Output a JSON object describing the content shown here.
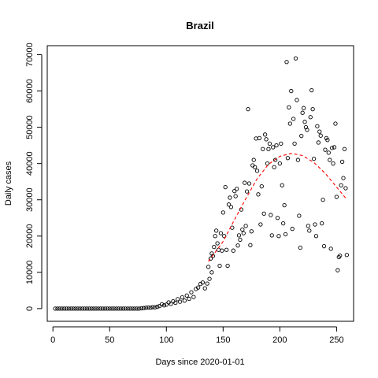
{
  "chart_data": {
    "type": "scatter",
    "title": "Brazil",
    "xlabel": "Days since 2020-01-01",
    "ylabel": "Daily cases",
    "xlim": [
      -5,
      265
    ],
    "ylim": [
      -3500,
      72500
    ],
    "x_ticks": [
      0,
      50,
      100,
      150,
      200,
      250
    ],
    "y_ticks": [
      0,
      10000,
      20000,
      30000,
      40000,
      50000,
      60000,
      70000
    ],
    "x_tick_labels": [
      "0",
      "50",
      "100",
      "150",
      "200",
      "250"
    ],
    "y_tick_labels": [
      "0",
      "10000",
      "20000",
      "30000",
      "40000",
      "50000",
      "60000",
      "70000"
    ],
    "points": [
      [
        2,
        0
      ],
      [
        4,
        0
      ],
      [
        6,
        0
      ],
      [
        8,
        0
      ],
      [
        10,
        0
      ],
      [
        12,
        0
      ],
      [
        14,
        0
      ],
      [
        16,
        0
      ],
      [
        18,
        0
      ],
      [
        20,
        0
      ],
      [
        22,
        0
      ],
      [
        24,
        0
      ],
      [
        26,
        0
      ],
      [
        28,
        0
      ],
      [
        30,
        0
      ],
      [
        32,
        0
      ],
      [
        34,
        0
      ],
      [
        36,
        0
      ],
      [
        38,
        0
      ],
      [
        40,
        0
      ],
      [
        42,
        0
      ],
      [
        44,
        0
      ],
      [
        46,
        0
      ],
      [
        48,
        0
      ],
      [
        50,
        0
      ],
      [
        52,
        0
      ],
      [
        54,
        0
      ],
      [
        56,
        0
      ],
      [
        58,
        0
      ],
      [
        60,
        0
      ],
      [
        62,
        0
      ],
      [
        64,
        0
      ],
      [
        66,
        0
      ],
      [
        68,
        0
      ],
      [
        70,
        0
      ],
      [
        72,
        0
      ],
      [
        74,
        0
      ],
      [
        76,
        0
      ],
      [
        78,
        100
      ],
      [
        80,
        150
      ],
      [
        82,
        250
      ],
      [
        84,
        300
      ],
      [
        86,
        250
      ],
      [
        88,
        400
      ],
      [
        90,
        350
      ],
      [
        92,
        500
      ],
      [
        94,
        700
      ],
      [
        96,
        1200
      ],
      [
        98,
        900
      ],
      [
        100,
        1100
      ],
      [
        102,
        1700
      ],
      [
        104,
        1300
      ],
      [
        106,
        2000
      ],
      [
        108,
        1600
      ],
      [
        110,
        2600
      ],
      [
        112,
        1900
      ],
      [
        114,
        3100
      ],
      [
        116,
        2200
      ],
      [
        118,
        3600
      ],
      [
        120,
        2700
      ],
      [
        122,
        4500
      ],
      [
        124,
        3200
      ],
      [
        126,
        5400
      ],
      [
        128,
        5800
      ],
      [
        130,
        6800
      ],
      [
        132,
        7200
      ],
      [
        134,
        5600
      ],
      [
        136,
        6900
      ],
      [
        137,
        11500
      ],
      [
        138,
        8200
      ],
      [
        139,
        13800
      ],
      [
        140,
        15200
      ],
      [
        140,
        10000
      ],
      [
        141,
        14500
      ],
      [
        142,
        17000
      ],
      [
        143,
        20000
      ],
      [
        144,
        21500
      ],
      [
        145,
        18000
      ],
      [
        146,
        16200
      ],
      [
        147,
        11800
      ],
      [
        148,
        20800
      ],
      [
        149,
        16000
      ],
      [
        150,
        26500
      ],
      [
        151,
        20000
      ],
      [
        152,
        33500
      ],
      [
        153,
        16200
      ],
      [
        154,
        11800
      ],
      [
        155,
        28700
      ],
      [
        156,
        30600
      ],
      [
        157,
        28000
      ],
      [
        158,
        22300
      ],
      [
        159,
        16000
      ],
      [
        160,
        32400
      ],
      [
        161,
        31000
      ],
      [
        162,
        33000
      ],
      [
        163,
        17400
      ],
      [
        164,
        20200
      ],
      [
        165,
        19000
      ],
      [
        166,
        27300
      ],
      [
        167,
        21800
      ],
      [
        168,
        20800
      ],
      [
        169,
        34700
      ],
      [
        170,
        22800
      ],
      [
        171,
        32300
      ],
      [
        172,
        55000
      ],
      [
        173,
        34500
      ],
      [
        174,
        17500
      ],
      [
        175,
        21300
      ],
      [
        176,
        39500
      ],
      [
        177,
        41000
      ],
      [
        178,
        39000
      ],
      [
        179,
        46900
      ],
      [
        180,
        38000
      ],
      [
        181,
        31500
      ],
      [
        182,
        47000
      ],
      [
        183,
        23200
      ],
      [
        184,
        33700
      ],
      [
        185,
        44000
      ],
      [
        186,
        26200
      ],
      [
        187,
        48000
      ],
      [
        188,
        46700
      ],
      [
        189,
        40000
      ],
      [
        190,
        44000
      ],
      [
        191,
        45500
      ],
      [
        192,
        25800
      ],
      [
        193,
        20200
      ],
      [
        194,
        44500
      ],
      [
        195,
        39000
      ],
      [
        196,
        41000
      ],
      [
        197,
        45000
      ],
      [
        198,
        25000
      ],
      [
        199,
        20000
      ],
      [
        200,
        40000
      ],
      [
        201,
        45500
      ],
      [
        202,
        34000
      ],
      [
        203,
        23500
      ],
      [
        204,
        28500
      ],
      [
        205,
        20500
      ],
      [
        206,
        68000
      ],
      [
        207,
        41500
      ],
      [
        208,
        55500
      ],
      [
        209,
        51000
      ],
      [
        210,
        60000
      ],
      [
        211,
        22000
      ],
      [
        212,
        52300
      ],
      [
        213,
        45500
      ],
      [
        214,
        69000
      ],
      [
        215,
        57500
      ],
      [
        216,
        41000
      ],
      [
        217,
        25600
      ],
      [
        218,
        16800
      ],
      [
        219,
        47600
      ],
      [
        220,
        54000
      ],
      [
        221,
        55300
      ],
      [
        222,
        51500
      ],
      [
        223,
        50000
      ],
      [
        224,
        49300
      ],
      [
        225,
        22800
      ],
      [
        226,
        21500
      ],
      [
        227,
        52800
      ],
      [
        228,
        60200
      ],
      [
        229,
        55000
      ],
      [
        230,
        41300
      ],
      [
        231,
        23200
      ],
      [
        232,
        20000
      ],
      [
        233,
        50300
      ],
      [
        234,
        45800
      ],
      [
        235,
        48800
      ],
      [
        236,
        47700
      ],
      [
        237,
        23500
      ],
      [
        238,
        30000
      ],
      [
        239,
        17200
      ],
      [
        240,
        43800
      ],
      [
        241,
        47000
      ],
      [
        242,
        46500
      ],
      [
        243,
        43000
      ],
      [
        244,
        41000
      ],
      [
        245,
        16500
      ],
      [
        246,
        44300
      ],
      [
        247,
        40000
      ],
      [
        248,
        44500
      ],
      [
        249,
        51000
      ],
      [
        250,
        30800
      ],
      [
        251,
        10600
      ],
      [
        252,
        14200
      ],
      [
        253,
        14600
      ],
      [
        254,
        34000
      ],
      [
        255,
        40500
      ],
      [
        256,
        36000
      ],
      [
        257,
        44000
      ],
      [
        258,
        33200
      ],
      [
        259,
        14800
      ]
    ],
    "fit_line": {
      "style": "dashed",
      "color": "#ff0000",
      "points": [
        [
          137,
          13000
        ],
        [
          150,
          18500
        ],
        [
          160,
          24500
        ],
        [
          170,
          30300
        ],
        [
          180,
          35800
        ],
        [
          190,
          39800
        ],
        [
          200,
          42000
        ],
        [
          210,
          42800
        ],
        [
          220,
          42200
        ],
        [
          230,
          40300
        ],
        [
          240,
          37300
        ],
        [
          250,
          33500
        ],
        [
          258,
          30500
        ]
      ]
    },
    "grid": false,
    "legend": "none"
  }
}
